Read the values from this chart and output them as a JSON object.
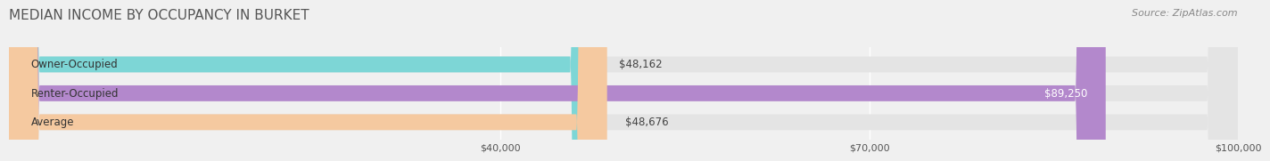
{
  "title": "MEDIAN INCOME BY OCCUPANCY IN BURKET",
  "source": "Source: ZipAtlas.com",
  "categories": [
    "Owner-Occupied",
    "Renter-Occupied",
    "Average"
  ],
  "values": [
    48162,
    89250,
    48676
  ],
  "bar_colors": [
    "#7dd6d6",
    "#b388cc",
    "#f5c9a0"
  ],
  "bar_labels": [
    "$48,162",
    "$89,250",
    "$48,676"
  ],
  "label_colors": [
    "#444444",
    "#ffffff",
    "#444444"
  ],
  "xlim": [
    0,
    100000
  ],
  "xticks": [
    40000,
    70000,
    100000
  ],
  "xtick_labels": [
    "$40,000",
    "$70,000",
    "$100,000"
  ],
  "title_fontsize": 11,
  "source_fontsize": 8,
  "bar_height": 0.55,
  "background_color": "#f0f0f0",
  "bar_bg_color": "#e4e4e4"
}
